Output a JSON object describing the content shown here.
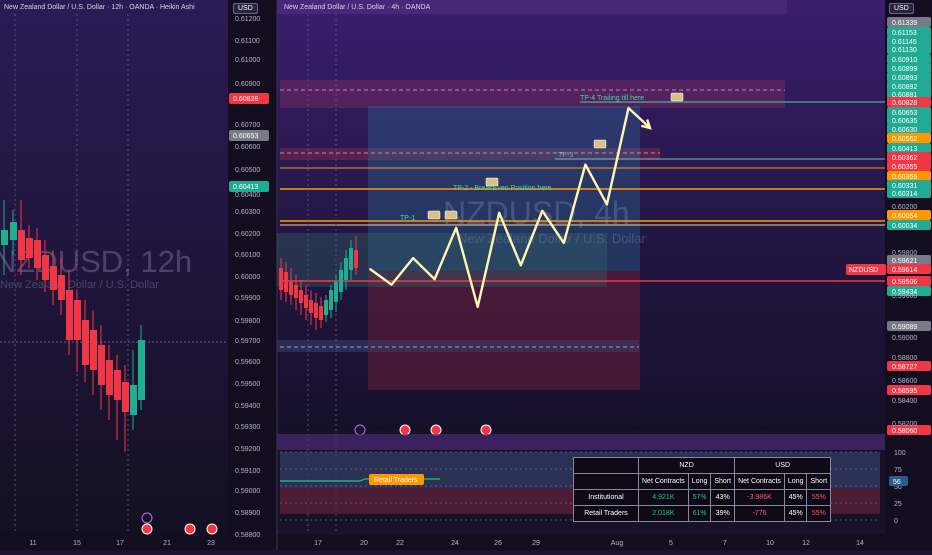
{
  "left_panel": {
    "title": "New Zealand Dollar / U.S. Dollar · 12h · OANDA · Heikin Ashi",
    "currency_button": "USD",
    "watermark_symbol": "NZDUSD, 12h",
    "watermark_subtitle": "New Zealand Dollar / U.S. Dollar",
    "price_labels": [
      "0.61200",
      "0.61100",
      "0.61000",
      "0.60900",
      "0.60700",
      "0.60600",
      "0.60500",
      "0.60400",
      "0.60300",
      "0.60200",
      "0.60100",
      "0.60000",
      "0.59900",
      "0.59800",
      "0.59700",
      "0.59600",
      "0.59500",
      "0.59400",
      "0.59300",
      "0.59200",
      "0.59100",
      "0.59000",
      "0.58900",
      "0.58800"
    ],
    "price_tags": [
      {
        "label": "0.60828",
        "color": "#f23645"
      },
      {
        "label": "0.60653",
        "color": "#787b86"
      },
      {
        "label": "0.60413",
        "color": "#22ab94"
      }
    ],
    "date_labels": [
      "11",
      "15",
      "17",
      "21",
      "23"
    ]
  },
  "right_panel": {
    "title": "New Zealand Dollar / U.S. Dollar · 4h · OANDA",
    "currency_button": "USD",
    "watermark_symbol": "NZDUSD, 4h",
    "watermark_subtitle": "New Zealand Dollar / U.S. Dollar",
    "annotations": [
      "TP-1",
      "TP-2 - BreakEven Position here",
      "TP-3",
      "TP-4 Trailing till here"
    ],
    "date_labels": [
      "17",
      "20",
      "22",
      "24",
      "26",
      "29",
      "Aug",
      "5",
      "7",
      "10",
      "12",
      "14"
    ],
    "price_tags": [
      {
        "label": "0.61339",
        "color": "#787b86"
      },
      {
        "label": "0.61153",
        "color": "#22ab94"
      },
      {
        "label": "0.61145",
        "color": "#22ab94"
      },
      {
        "label": "0.61130",
        "color": "#22ab94"
      },
      {
        "label": "0.60910",
        "color": "#22ab94"
      },
      {
        "label": "0.60899",
        "color": "#22ab94"
      },
      {
        "label": "0.60893",
        "color": "#22ab94"
      },
      {
        "label": "0.60892",
        "color": "#22ab94"
      },
      {
        "label": "0.60881",
        "color": "#22ab94"
      },
      {
        "label": "0.60828",
        "color": "#f23645"
      },
      {
        "label": "0.60653",
        "color": "#22ab94"
      },
      {
        "label": "0.60635",
        "color": "#22ab94"
      },
      {
        "label": "0.60630",
        "color": "#22ab94"
      },
      {
        "label": "0.60562",
        "color": "#ff9800"
      },
      {
        "label": "0.60413",
        "color": "#22ab94"
      },
      {
        "label": "0.60362",
        "color": "#f23645"
      },
      {
        "label": "0.60355",
        "color": "#f23645"
      },
      {
        "label": "0.60355",
        "color": "#ff9800"
      },
      {
        "label": "0.60331",
        "color": "#22ab94"
      },
      {
        "label": "0.60314",
        "color": "#22ab94"
      },
      {
        "label": "0.60054",
        "color": "#ff9800"
      },
      {
        "label": "0.60034",
        "color": "#22ab94"
      },
      {
        "label": "0.59621",
        "color": "#787b86"
      },
      {
        "label": "0.59614",
        "color": "#f23645"
      },
      {
        "label": "0.59506",
        "color": "#f23645"
      },
      {
        "label": "0.59434",
        "color": "#22ab94"
      },
      {
        "label": "0.59089",
        "color": "#787b86"
      },
      {
        "label": "0.58727",
        "color": "#f23645"
      },
      {
        "label": "0.58595",
        "color": "#f23645"
      },
      {
        "label": "0.58060",
        "color": "#f23645"
      }
    ],
    "axis_labels": [
      "0.60200",
      "0.59800",
      "0.59600",
      "0.58800",
      "0.58600",
      "0.58400",
      "0.58200",
      "0.59000"
    ],
    "symbol_tag": "NZDUSD",
    "osc_labels": [
      "100",
      "75",
      "50",
      "25",
      "0"
    ],
    "osc_value": "56",
    "retail_traders_label": "Retail Traders"
  },
  "cot_table": {
    "groups": [
      "NZD",
      "USD"
    ],
    "columns": [
      "Net Contracts",
      "Long",
      "Short",
      "Net Contracts",
      "Long",
      "Short"
    ],
    "rows": [
      {
        "label": "Institutional",
        "cells": [
          "4.921K",
          "57%",
          "43%",
          "-3.986K",
          "45%",
          "55%"
        ]
      },
      {
        "label": "Retail Traders",
        "cells": [
          "2.018K",
          "61%",
          "39%",
          "-776",
          "45%",
          "55%"
        ]
      }
    ]
  },
  "chart_data": {
    "type": "line",
    "series": [
      {
        "values": [
          0.59997,
          0.59925,
          0.60047,
          0.5995,
          0.60186,
          0.59823,
          0.60255,
          0.60014,
          0.60264,
          0.60117,
          0.60476,
          0.60294,
          0.60736,
          0.60644
        ]
      }
    ]
  }
}
